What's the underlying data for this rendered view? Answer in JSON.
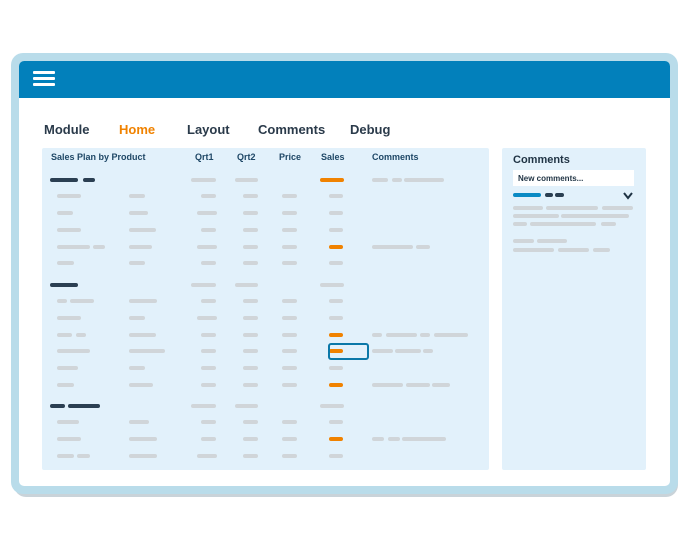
{
  "nav": {
    "tabs": [
      {
        "label": "Module",
        "active": false
      },
      {
        "label": "Home",
        "active": true
      },
      {
        "label": "Layout",
        "active": false
      },
      {
        "label": "Comments",
        "active": false
      },
      {
        "label": "Debug",
        "active": false
      }
    ]
  },
  "table": {
    "headers": {
      "product": "Sales Plan by Product",
      "qrt1": "Qrt1",
      "qrt2": "Qrt2",
      "price": "Price",
      "sales": "Sales",
      "comments": "Comments"
    }
  },
  "comments_panel": {
    "title": "Comments",
    "input_value": "New comments..."
  },
  "colors": {
    "accent": "#0280bb",
    "active_tab": "#f08200",
    "highlight_bar": "#f08200",
    "panel_bg": "#e2f1fb"
  },
  "icons": {
    "menu": "hamburger-menu-icon",
    "expand": "chevron-down-icon"
  }
}
